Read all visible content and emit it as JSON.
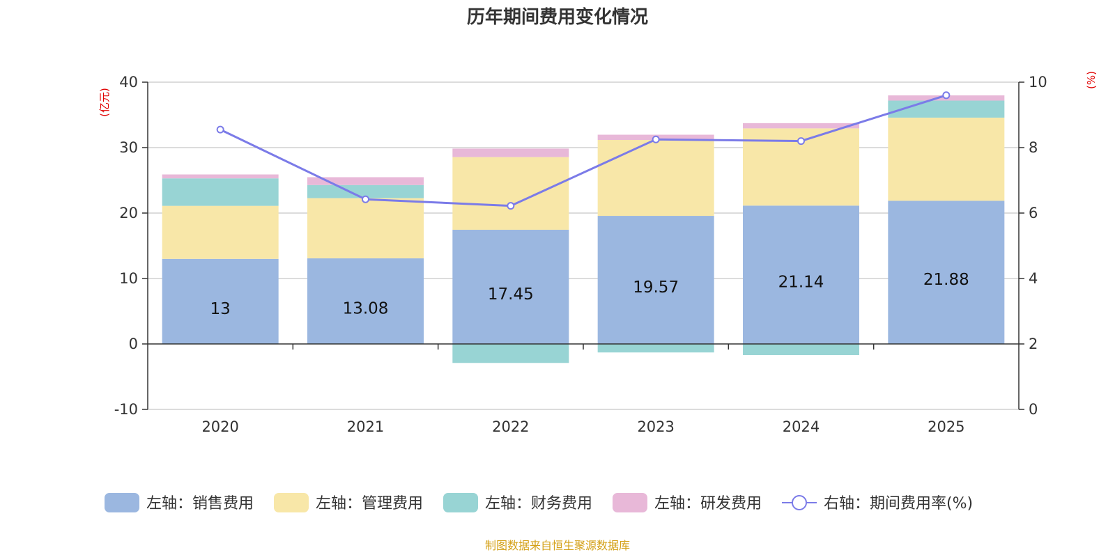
{
  "chart_data": {
    "type": "bar",
    "stacked": true,
    "title": "历年期间费用变化情况",
    "categories": [
      "2020",
      "2021",
      "2022",
      "2023",
      "2024",
      "2025"
    ],
    "left_axis": {
      "unit": "(亿元)",
      "ticks": [
        "40",
        "30",
        "20",
        "10",
        "0",
        "-10"
      ],
      "min": -10,
      "max": 40
    },
    "right_axis": {
      "unit": "(%)",
      "ticks": [
        "10",
        "8",
        "6",
        "4",
        "2",
        "0"
      ],
      "min": 0,
      "max": 10
    },
    "series": [
      {
        "name": "左轴：销售费用",
        "axis": "left",
        "type": "bar",
        "color": "#9bb7e0",
        "values": [
          13,
          13.08,
          17.45,
          19.57,
          21.14,
          21.88
        ],
        "labels": [
          "13",
          "13.08",
          "17.45",
          "19.57",
          "21.14",
          "21.88"
        ]
      },
      {
        "name": "左轴：管理费用",
        "axis": "left",
        "type": "bar",
        "color": "#f8e7a8",
        "values": [
          8.1,
          9.2,
          11.1,
          11.6,
          11.8,
          12.7
        ]
      },
      {
        "name": "左轴：财务费用",
        "axis": "left",
        "type": "bar",
        "color": "#98d4d4",
        "values": [
          4.2,
          2.0,
          -2.9,
          -1.3,
          -1.7,
          2.6
        ]
      },
      {
        "name": "左轴：研发费用",
        "axis": "left",
        "type": "bar",
        "color": "#e8b8d8",
        "values": [
          0.6,
          1.2,
          1.3,
          0.8,
          0.8,
          0.8
        ]
      },
      {
        "name": "右轴：期间费用率(%)",
        "axis": "right",
        "type": "line",
        "color": "#7b7be8",
        "values": [
          8.55,
          6.42,
          6.22,
          8.25,
          8.2,
          9.6
        ]
      }
    ]
  },
  "source": "制图数据来自恒生聚源数据库"
}
